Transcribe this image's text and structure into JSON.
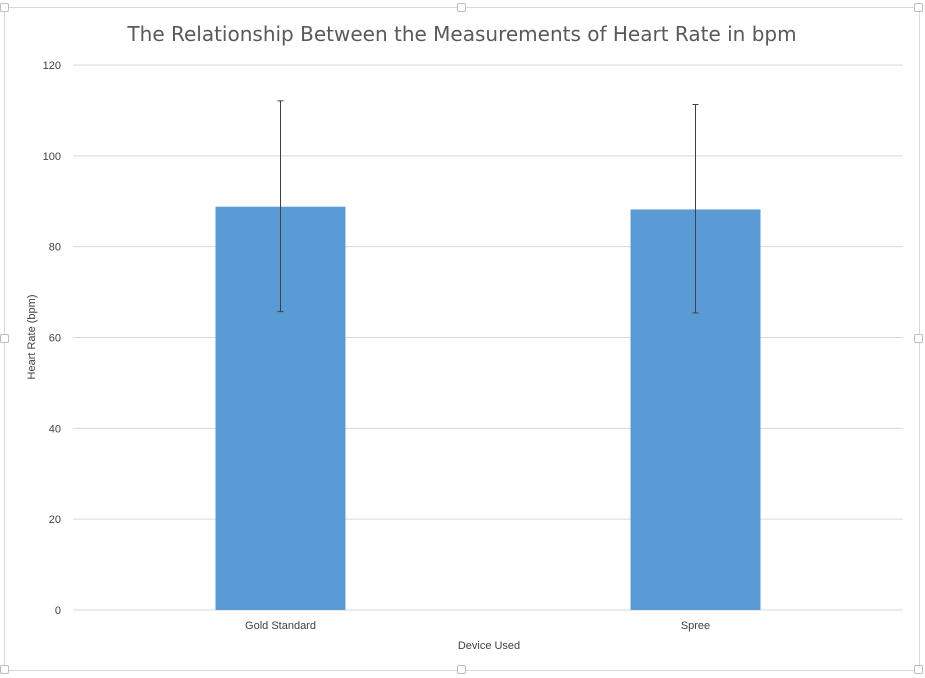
{
  "chart_data": {
    "type": "bar",
    "title": "The Relationship Between the Measurements of Heart Rate in bpm",
    "xlabel": "Device Used",
    "ylabel": "Heart Rate (bpm)",
    "categories": [
      "Gold Standard",
      "Spree"
    ],
    "values": [
      88.8,
      88.2
    ],
    "error_bars": [
      {
        "low": 65.7,
        "high": 112.1
      },
      {
        "low": 65.4,
        "high": 111.3
      }
    ],
    "ylim": [
      0,
      120
    ],
    "yticks": [
      0,
      20,
      40,
      60,
      80,
      100,
      120
    ],
    "grid": true,
    "legend": "none",
    "colors": {
      "bar": "#5b9bd5",
      "grid": "#d9d9d9",
      "error_bar": "#404040",
      "text": "#595959"
    }
  }
}
